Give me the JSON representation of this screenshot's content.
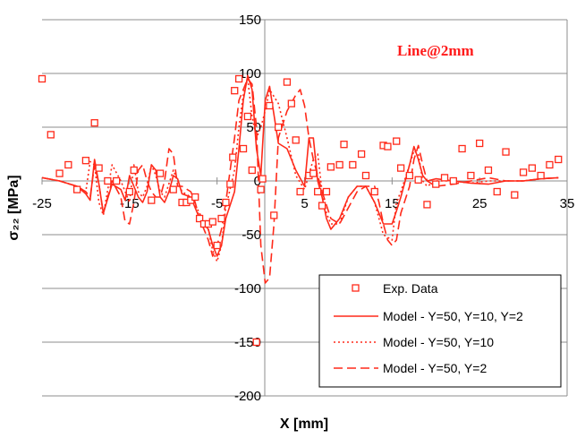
{
  "chart_data": {
    "type": "line",
    "xlabel": "X [mm]",
    "ylabel": "σ₂₂ [MPa]",
    "xlim": [
      -25,
      35
    ],
    "ylim": [
      -200,
      150
    ],
    "x_ticks": [
      "-25",
      "-15",
      "-5",
      "5",
      "15",
      "25",
      "35"
    ],
    "y_ticks": [
      "150",
      "100",
      "50",
      "0",
      "-50",
      "-100",
      "-150",
      "-200"
    ],
    "grid": "horizontal",
    "annotation": "Line@2mm",
    "legend_position": "bottom-right",
    "colors": {
      "series": "#ff2a1a",
      "grid": "#8c8c8c",
      "plot_bg": "#ffffff"
    },
    "series": [
      {
        "name": "Exp. Data",
        "style": "markers",
        "x": [
          -25,
          -24,
          -23,
          -22,
          -21,
          -20,
          -19,
          -18.5,
          -17.5,
          -16.5,
          -15,
          -14.5,
          -12.5,
          -11.5,
          -10,
          -9,
          -8.5,
          -8,
          -7.5,
          -7,
          -6.5,
          -6,
          -5.5,
          -5,
          -4.5,
          -4,
          -3.5,
          -3.2,
          -3,
          -2.5,
          -2,
          -1.5,
          -1,
          -0.5,
          0,
          0.2,
          1,
          1.5,
          2,
          3,
          3.5,
          4,
          4.5,
          5.5,
          6,
          6.5,
          7,
          7.5,
          8,
          9,
          9.5,
          10.5,
          11.5,
          12,
          13,
          14,
          14.5,
          15.5,
          16,
          17,
          18,
          19,
          20,
          21,
          22,
          23,
          24,
          25,
          26,
          27,
          28,
          29,
          30,
          31,
          32,
          33,
          34
        ],
        "y": [
          95,
          43,
          7,
          15,
          -8,
          19,
          54,
          12,
          0,
          0,
          -10,
          10,
          -18,
          7,
          -8,
          -20,
          -20,
          -18,
          -15,
          -35,
          -40,
          -40,
          -38,
          -60,
          -35,
          -20,
          -3,
          22,
          84,
          95,
          30,
          60,
          10,
          -150,
          -8,
          2,
          70,
          -32,
          50,
          92,
          72,
          38,
          -10,
          5,
          7,
          -10,
          -23,
          -10,
          13,
          15,
          34,
          15,
          25,
          5,
          -10,
          33,
          32,
          37,
          12,
          5,
          1,
          -22,
          -3,
          3,
          0,
          30,
          5,
          35,
          10,
          -10,
          27,
          -13,
          8,
          12,
          5,
          15,
          20
        ]
      },
      {
        "name": "Model - Y=50, Y=10, Y=2",
        "style": "solid",
        "x": [
          -25,
          -23,
          -21,
          -20,
          -19.5,
          -19,
          -18.5,
          -18,
          -17,
          -16,
          -15.5,
          -15,
          -14.5,
          -14,
          -13.5,
          -13,
          -12.5,
          -12,
          -11.5,
          -11,
          -10.5,
          -10,
          -9.5,
          -9,
          -8,
          -7.5,
          -7,
          -6,
          -5.5,
          -5,
          -4.5,
          -4,
          -3,
          -2.5,
          -2,
          -1.5,
          -1,
          -0.5,
          0,
          0.5,
          1,
          2,
          3,
          4,
          5,
          5.5,
          6,
          6.5,
          7,
          7.5,
          8,
          9,
          10,
          11,
          12,
          13,
          14,
          15,
          15.5,
          16,
          17,
          17.5,
          18,
          18.5,
          19,
          20,
          22,
          24,
          26,
          28,
          30,
          32,
          34
        ],
        "y": [
          3,
          0,
          -5,
          -12,
          -18,
          20,
          -3,
          -30,
          -3,
          -8,
          -18,
          5,
          -5,
          -15,
          -20,
          -10,
          15,
          10,
          -15,
          -20,
          -10,
          5,
          2,
          -12,
          -15,
          -25,
          -35,
          -45,
          -60,
          -70,
          -60,
          -35,
          -10,
          30,
          75,
          98,
          85,
          30,
          5,
          75,
          88,
          35,
          30,
          10,
          -5,
          40,
          40,
          0,
          -15,
          -35,
          -45,
          -35,
          -15,
          -5,
          -5,
          -20,
          -40,
          -40,
          -28,
          -15,
          15,
          32,
          20,
          5,
          0,
          2,
          0,
          -2,
          -3,
          0,
          0,
          2,
          3
        ]
      },
      {
        "name": "Model - Y=50, Y=10",
        "style": "dotted",
        "x": [
          -25,
          -23,
          -21,
          -20,
          -19.5,
          -19,
          -18.5,
          -18,
          -17,
          -16,
          -15,
          -14.5,
          -14,
          -13.5,
          -13,
          -12.5,
          -12,
          -11.5,
          -11,
          -10,
          -9.5,
          -9,
          -8,
          -7,
          -6,
          -5.5,
          -5,
          -4.5,
          -4,
          -3,
          -2.5,
          -2,
          -1.5,
          -1,
          -0.5,
          0,
          0.5,
          1,
          2,
          3,
          4,
          5,
          6,
          6.5,
          7,
          7.5,
          8,
          9,
          10,
          11,
          12,
          13,
          14,
          15,
          15.5,
          16,
          17,
          17.5,
          18,
          18.5,
          19,
          20,
          22,
          24,
          26,
          28,
          30,
          32,
          34
        ],
        "y": [
          3,
          0,
          -5,
          -10,
          18,
          15,
          -20,
          -32,
          15,
          0,
          -20,
          15,
          -10,
          -15,
          -5,
          15,
          5,
          -10,
          -15,
          10,
          0,
          -10,
          -15,
          -30,
          -45,
          -65,
          -75,
          -60,
          -25,
          10,
          50,
          80,
          95,
          60,
          40,
          50,
          65,
          85,
          72,
          40,
          5,
          -8,
          20,
          25,
          -10,
          -30,
          -40,
          -40,
          -15,
          -5,
          -5,
          -20,
          -50,
          -55,
          -20,
          -10,
          15,
          28,
          25,
          0,
          -5,
          0,
          0,
          -2,
          0,
          0,
          0,
          2,
          3
        ]
      },
      {
        "name": "Model - Y=50, Y=2",
        "style": "dashed",
        "x": [
          -25,
          -23,
          -21,
          -20,
          -19.5,
          -19,
          -18.5,
          -18,
          -17,
          -16,
          -15.5,
          -15,
          -14.5,
          -14,
          -13.5,
          -13,
          -12.5,
          -12,
          -11.5,
          -11,
          -10.5,
          -10,
          -9.5,
          -9,
          -8,
          -7.5,
          -7,
          -6,
          -5.5,
          -5,
          -4.5,
          -4,
          -3.5,
          -3,
          -2.5,
          -2,
          -1.5,
          -1,
          -0.5,
          0,
          0.5,
          1,
          1.5,
          2,
          3,
          4,
          4.5,
          5,
          5.5,
          6,
          7,
          8,
          9,
          10,
          11,
          12,
          13,
          13.5,
          14,
          14.5,
          15,
          15.5,
          16,
          17,
          17.5,
          18,
          18.5,
          19,
          20,
          22,
          24,
          26,
          28,
          30,
          32,
          34
        ],
        "y": [
          3,
          0,
          -5,
          -10,
          -15,
          15,
          -3,
          -30,
          0,
          -15,
          -38,
          -40,
          -20,
          10,
          15,
          0,
          -10,
          -15,
          -15,
          0,
          30,
          25,
          -5,
          -5,
          -10,
          -20,
          -35,
          -55,
          -70,
          -60,
          -45,
          -20,
          10,
          40,
          75,
          85,
          95,
          90,
          50,
          -60,
          -95,
          -90,
          -40,
          40,
          65,
          80,
          85,
          70,
          40,
          20,
          -10,
          -35,
          -40,
          -25,
          -10,
          -5,
          -5,
          -20,
          -40,
          -55,
          -60,
          -55,
          -30,
          -5,
          20,
          33,
          15,
          0,
          -5,
          -3,
          0,
          3,
          0,
          0,
          2,
          3
        ]
      }
    ]
  }
}
